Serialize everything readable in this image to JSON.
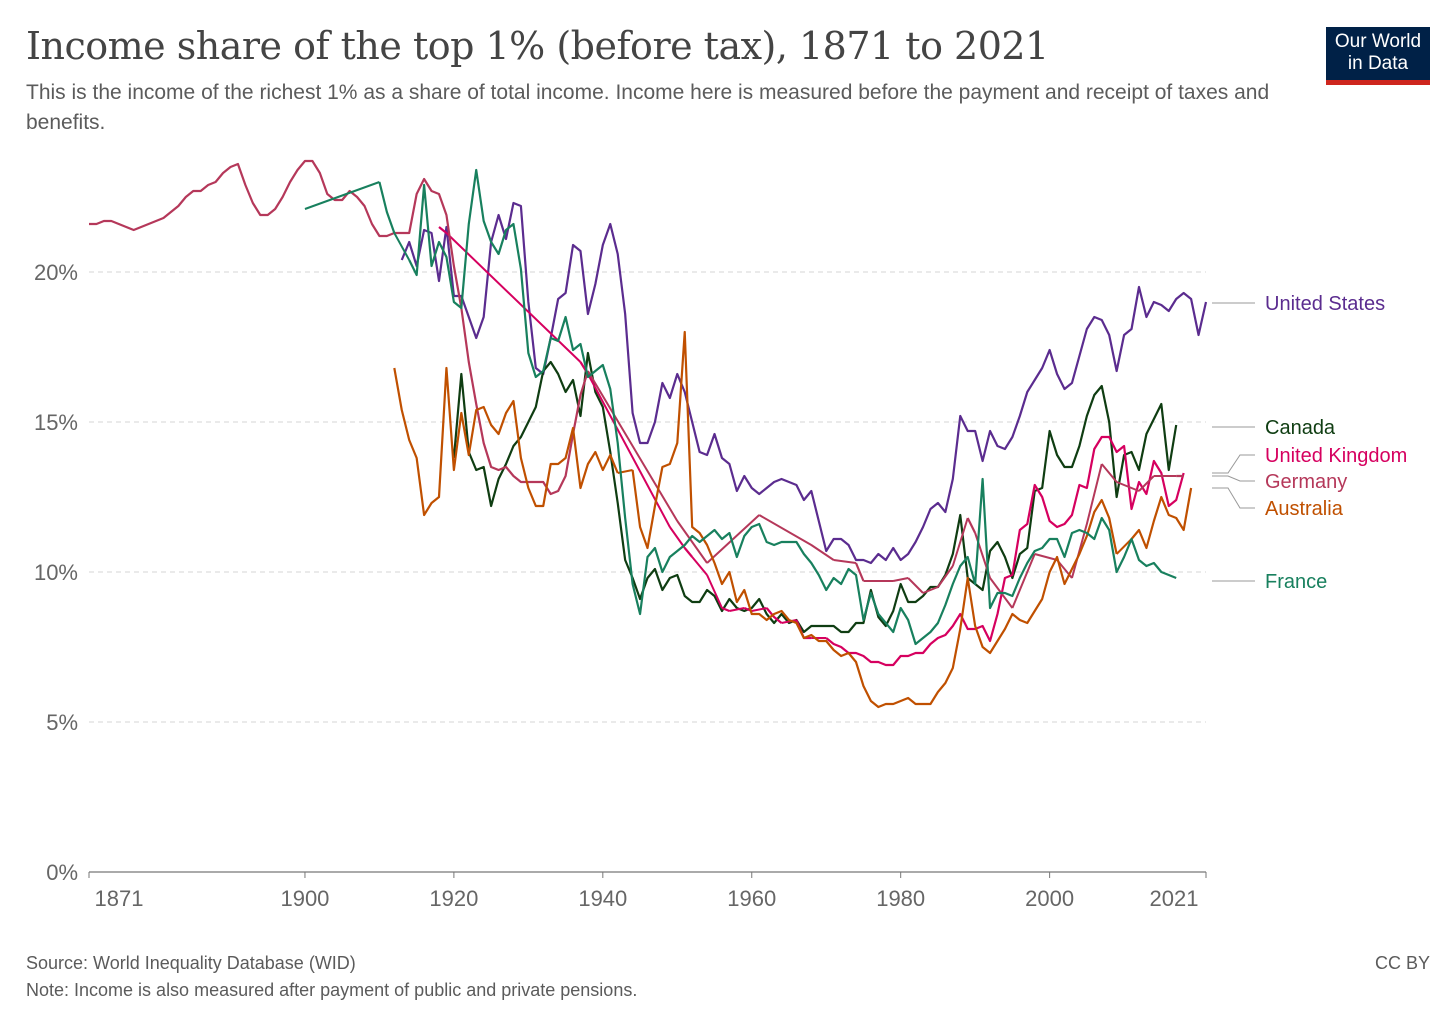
{
  "chart_data": {
    "type": "line",
    "title": "Income share of the top 1% (before tax), 1871 to 2021",
    "subtitle": "This is the income of the richest 1% as a share of total income. Income here is measured before the payment and receipt of taxes and benefits.",
    "xlabel": "",
    "ylabel": "",
    "xlim": [
      1871,
      2021
    ],
    "ylim": [
      0,
      24
    ],
    "x_ticks": [
      "1871",
      "1900",
      "1920",
      "1940",
      "1960",
      "1980",
      "2000",
      "2021"
    ],
    "y_ticks": [
      "0%",
      "5%",
      "10%",
      "15%",
      "20%"
    ],
    "grid": "horizontal dashed",
    "legend": "right, end-of-line labels",
    "series": [
      {
        "name": "United States",
        "color": "#5b2c8f",
        "start": 1913,
        "values": [
          20.4,
          21.0,
          20.2,
          21.4,
          21.3,
          19.7,
          21.5,
          19.2,
          19.2,
          18.5,
          17.8,
          18.5,
          21.0,
          21.9,
          21.1,
          22.3,
          22.2,
          19.0,
          16.8,
          16.6,
          17.8,
          19.1,
          19.3,
          20.9,
          20.7,
          18.6,
          19.6,
          20.9,
          21.6,
          20.6,
          18.6,
          15.3,
          14.3,
          14.3,
          15.0,
          16.3,
          15.8,
          16.6,
          16.0,
          15.0,
          14.0,
          13.9,
          14.6,
          13.8,
          13.6,
          12.7,
          13.2,
          12.8,
          12.6,
          12.8,
          13.0,
          13.1,
          13.0,
          12.9,
          12.4,
          12.7,
          11.7,
          10.7,
          11.1,
          11.1,
          10.9,
          10.4,
          10.4,
          10.3,
          10.6,
          10.4,
          10.8,
          10.4,
          10.6,
          11.0,
          11.5,
          12.1,
          12.3,
          12.0,
          13.1,
          15.2,
          14.7,
          14.7,
          13.7,
          14.7,
          14.2,
          14.1,
          14.5,
          15.2,
          16.0,
          16.4,
          16.8,
          17.4,
          16.6,
          16.1,
          16.3,
          17.2,
          18.1,
          18.5,
          18.4,
          17.9,
          16.7,
          17.9,
          18.1,
          19.5,
          18.5,
          19.0,
          18.9,
          18.7,
          19.1,
          19.3,
          19.1,
          17.9,
          19.0
        ]
      },
      {
        "name": "Canada",
        "color": "#0f3d12",
        "start": 1920,
        "values": [
          13.8,
          16.6,
          14.0,
          13.4,
          13.5,
          12.2,
          13.1,
          13.6,
          14.2,
          14.5,
          15.0,
          15.5,
          16.7,
          17.0,
          16.6,
          16.0,
          16.4,
          15.2,
          17.3,
          16.0,
          15.5,
          14.0,
          12.3,
          10.4,
          9.8,
          9.1,
          9.8,
          10.1,
          9.4,
          9.8,
          9.9,
          9.2,
          9.0,
          9.0,
          9.4,
          9.2,
          8.7,
          9.1,
          8.8,
          8.7,
          8.8,
          9.1,
          8.6,
          8.3,
          8.6,
          8.3,
          8.4,
          8.0,
          8.2,
          8.2,
          8.2,
          8.2,
          8.0,
          8.0,
          8.3,
          8.3,
          9.4,
          8.5,
          8.2,
          8.7,
          9.6,
          9.0,
          9.0,
          9.2,
          9.5,
          9.5,
          9.9,
          10.6,
          11.9,
          9.8,
          9.6,
          9.4,
          10.7,
          11.0,
          10.5,
          9.8,
          10.6,
          10.8,
          12.7,
          12.8,
          14.7,
          13.9,
          13.5,
          13.5,
          14.2,
          15.2,
          15.9,
          16.2,
          15.0,
          12.5,
          13.9,
          14.0,
          13.4,
          14.6,
          15.1,
          15.6,
          13.4,
          14.9
        ]
      },
      {
        "name": "United Kingdom",
        "color": "#d6005f",
        "start": 1918,
        "values": [
          21.5,
          21.3,
          null,
          null,
          null,
          null,
          null,
          null,
          null,
          null,
          null,
          null,
          null,
          null,
          null,
          null,
          null,
          null,
          null,
          17.0,
          16.6,
          null,
          null,
          null,
          null,
          null,
          null,
          null,
          null,
          null,
          null,
          11.5,
          null,
          10.8,
          10.5,
          null,
          9.9,
          null,
          8.8,
          8.7,
          null,
          8.8,
          8.7,
          null,
          8.8,
          8.5,
          8.3,
          null,
          8.4,
          7.8,
          7.8,
          null,
          7.8,
          7.6,
          7.5,
          7.3,
          7.3,
          7.2,
          7.0,
          7.0,
          6.9,
          6.9,
          7.2,
          7.2,
          7.3,
          7.3,
          7.6,
          7.8,
          7.9,
          8.2,
          8.6,
          8.1,
          8.1,
          8.2,
          7.7,
          8.6,
          9.8,
          9.9,
          11.4,
          11.6,
          12.9,
          12.5,
          11.7,
          11.5,
          11.6,
          11.9,
          12.9,
          12.8,
          14.1,
          14.5,
          14.5,
          14.0,
          14.2,
          12.1,
          13.0,
          12.6,
          13.7,
          13.3,
          12.2,
          12.4,
          13.3
        ]
      },
      {
        "name": "Germany",
        "color": "#b5385a",
        "start": 1871,
        "values": [
          21.6,
          21.6,
          21.7,
          21.7,
          21.6,
          21.5,
          21.4,
          21.5,
          21.6,
          21.7,
          21.8,
          22.0,
          22.2,
          22.5,
          22.7,
          22.7,
          22.9,
          23.0,
          23.3,
          23.5,
          23.6,
          22.9,
          22.3,
          21.9,
          21.9,
          22.1,
          22.5,
          23.0,
          23.4,
          23.7,
          23.7,
          23.3,
          22.6,
          22.4,
          22.4,
          22.7,
          22.5,
          22.2,
          21.6,
          21.2,
          21.2,
          21.3,
          21.3,
          21.3,
          22.6,
          23.1,
          22.7,
          22.6,
          21.9,
          20.2,
          18.8,
          17.0,
          15.6,
          14.3,
          13.5,
          13.4,
          13.5,
          13.2,
          13.0,
          13.0,
          13.0,
          13.0,
          12.6,
          12.7,
          13.2,
          14.6,
          15.9,
          16.7,
          null,
          null,
          null,
          null,
          null,
          null,
          null,
          null,
          null,
          null,
          null,
          11.7,
          null,
          null,
          null,
          10.3,
          null,
          null,
          null,
          null,
          null,
          null,
          11.9,
          null,
          null,
          null,
          null,
          null,
          null,
          10.9,
          null,
          null,
          10.4,
          null,
          null,
          10.3,
          9.7,
          null,
          null,
          null,
          9.7,
          null,
          9.8,
          null,
          9.3,
          null,
          9.5,
          null,
          10.2,
          null,
          11.8,
          11.3,
          null,
          9.8,
          null,
          null,
          8.8,
          null,
          null,
          10.6,
          null,
          null,
          10.4,
          null,
          9.8,
          null,
          11.6,
          null,
          13.6,
          null,
          13.0,
          null,
          null,
          12.7,
          null,
          13.2,
          null,
          null,
          13.2,
          13.2
        ]
      },
      {
        "name": "Australia",
        "color": "#c05000",
        "start": 1912,
        "values": [
          16.8,
          15.4,
          14.4,
          13.8,
          11.9,
          12.3,
          12.5,
          16.8,
          13.4,
          15.3,
          13.9,
          15.4,
          15.5,
          14.9,
          14.6,
          15.3,
          15.7,
          13.8,
          12.8,
          12.2,
          12.2,
          13.6,
          13.6,
          13.8,
          14.8,
          12.8,
          13.6,
          14.0,
          13.4,
          13.9,
          13.3,
          null,
          13.4,
          11.5,
          10.8,
          12.2,
          13.5,
          13.6,
          14.3,
          18.0,
          11.5,
          11.3,
          10.9,
          10.3,
          9.6,
          10.0,
          9.0,
          9.4,
          8.6,
          8.6,
          8.4,
          8.6,
          8.7,
          8.4,
          8.3,
          7.8,
          7.9,
          7.7,
          7.7,
          7.4,
          7.2,
          7.3,
          7.0,
          6.2,
          5.7,
          5.5,
          5.6,
          5.6,
          5.7,
          5.8,
          5.6,
          5.6,
          5.6,
          6.0,
          6.3,
          6.8,
          8.1,
          9.8,
          8.2,
          7.5,
          7.3,
          7.7,
          8.1,
          8.6,
          8.4,
          8.3,
          8.7,
          9.1,
          10.0,
          10.5,
          9.6,
          10.1,
          10.6,
          11.2,
          12.0,
          12.4,
          11.8,
          10.6,
          null,
          11.1,
          11.4,
          10.8,
          11.7,
          12.5,
          11.9,
          11.8,
          11.4,
          12.8
        ]
      },
      {
        "name": "France",
        "color": "#18805e",
        "start": 1900,
        "values": [
          22.1,
          null,
          null,
          null,
          null,
          null,
          null,
          null,
          null,
          null,
          23.0,
          22.0,
          21.3,
          null,
          20.4,
          19.9,
          22.9,
          20.2,
          21.0,
          20.5,
          19.0,
          18.8,
          21.6,
          23.4,
          21.7,
          21.0,
          20.6,
          21.4,
          21.6,
          20.1,
          17.3,
          16.5,
          16.7,
          17.8,
          17.7,
          18.5,
          17.4,
          17.6,
          16.5,
          16.7,
          16.9,
          16.1,
          14.3,
          11.8,
          9.6,
          8.6,
          10.5,
          10.8,
          10.0,
          10.5,
          10.7,
          10.9,
          11.2,
          11.0,
          11.2,
          11.4,
          11.1,
          11.3,
          10.5,
          11.2,
          11.5,
          11.6,
          11.0,
          10.9,
          11.0,
          11.0,
          11.0,
          10.6,
          10.3,
          9.9,
          9.4,
          9.8,
          9.6,
          10.1,
          9.9,
          8.4,
          9.3,
          8.6,
          8.3,
          8.0,
          8.8,
          8.4,
          7.6,
          7.8,
          8.0,
          8.3,
          8.9,
          9.6,
          10.2,
          10.5,
          9.6,
          13.1,
          8.8,
          9.3,
          9.3,
          9.2,
          9.8,
          10.3,
          10.7,
          10.8,
          11.1,
          11.1,
          10.5,
          11.3,
          11.4,
          11.3,
          11.1,
          11.8,
          11.4,
          10.0,
          10.5,
          11.1,
          10.4,
          10.2,
          10.3,
          10.0,
          9.9,
          9.8
        ]
      }
    ]
  },
  "logo": {
    "line1": "Our World",
    "line2": "in Data"
  },
  "footer": {
    "source": "Source: World Inequality Database (WID)",
    "note": "Note: Income is also measured after payment of public and private pensions.",
    "license": "CC BY"
  }
}
